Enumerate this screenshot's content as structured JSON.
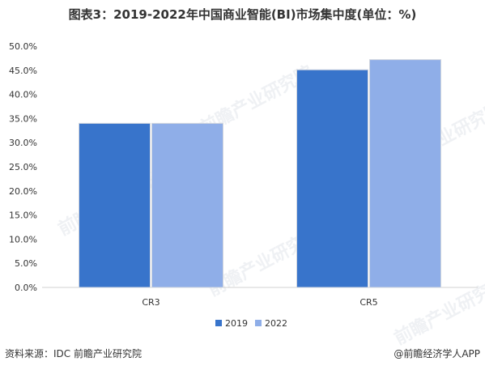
{
  "title": "图表3：2019-2022年中国商业智能(BI)市场集中度(单位：%)",
  "footer": {
    "source": "资料来源：IDC 前瞻产业研究院",
    "brand": "@前瞻经济学人APP"
  },
  "watermark": {
    "text": "前瞻产业研究院"
  },
  "colors": {
    "series_2019": "#3874CB",
    "series_2022": "#8FAEE8",
    "bar_edge": "#D0D5DD"
  },
  "chart_data": {
    "type": "bar",
    "categories": [
      "CR3",
      "CR5"
    ],
    "series": [
      {
        "name": "2019",
        "values": [
          34.0,
          45.1
        ]
      },
      {
        "name": "2022",
        "values": [
          34.0,
          47.2
        ]
      }
    ],
    "ylim": [
      0,
      50
    ],
    "yticks": [
      "0.0%",
      "5.0%",
      "10.0%",
      "15.0%",
      "20.0%",
      "25.0%",
      "30.0%",
      "35.0%",
      "40.0%",
      "45.0%",
      "50.0%"
    ],
    "legend_position": "bottom",
    "grid": false
  }
}
